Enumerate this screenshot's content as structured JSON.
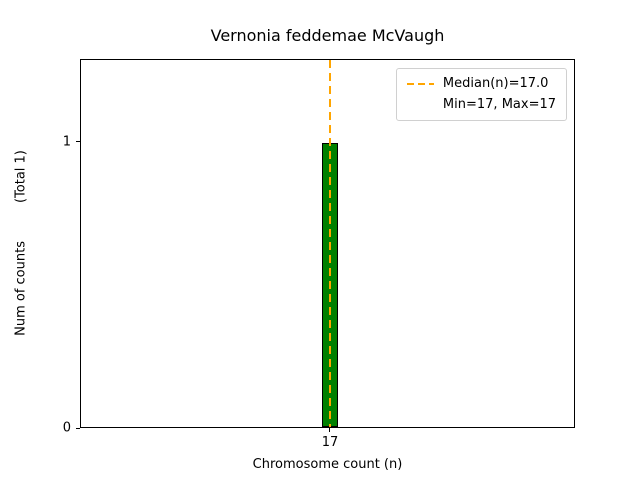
{
  "chart_data": {
    "type": "bar",
    "title": "Vernonia feddemae McVaugh",
    "xlabel": "Chromosome count (n)",
    "ylabel": "Num of counts    (Total 1)",
    "ylabel_main": "Num of counts",
    "ylabel_total": "(Total 1)",
    "categories": [
      "17"
    ],
    "values": [
      1
    ],
    "ylim": [
      0,
      1.29
    ],
    "yticks": [
      "0",
      "1"
    ],
    "ytick_values": [
      0,
      1
    ],
    "xticks": [
      "17"
    ],
    "median": 17.0,
    "min": 17,
    "max": 17,
    "grid": false,
    "legend": {
      "position": "upper right",
      "entries": [
        {
          "label": "Median(n)=17.0",
          "line_color": "#FFA500",
          "line_style": "dashed"
        },
        {
          "label": "Min=17, Max=17"
        }
      ]
    },
    "bar_color": "#008000",
    "bar_edge_color": "#000000",
    "median_line_color": "#FFA500"
  }
}
